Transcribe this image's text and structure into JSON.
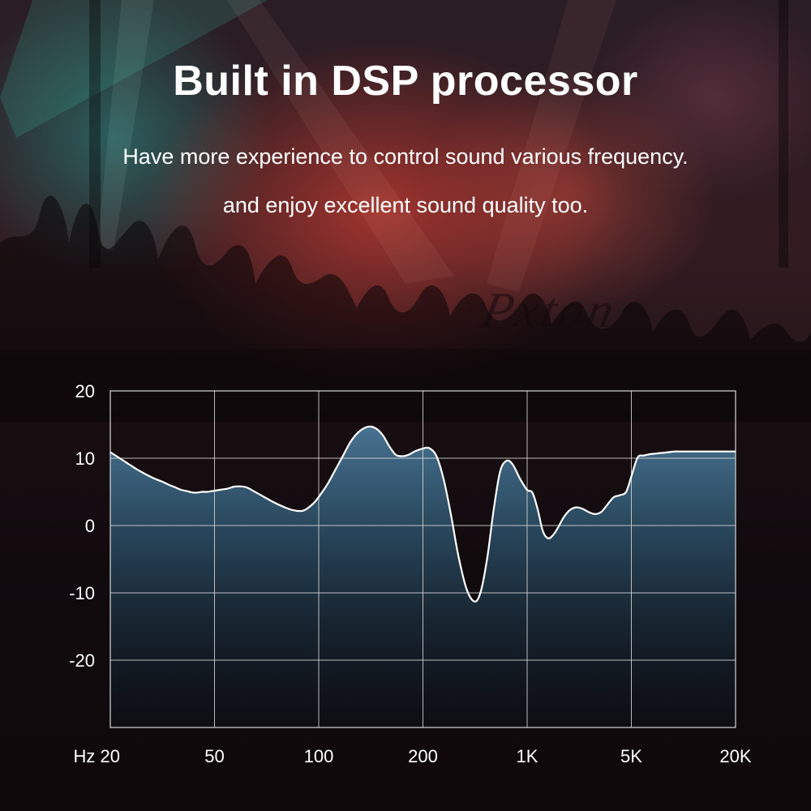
{
  "title": "Built in DSP processor",
  "subtitle_lines": [
    "Have more experience to control sound various frequency.",
    "and enjoy excellent sound quality too."
  ],
  "brand": "Pxton",
  "colors": {
    "fill_top": "#4a7898",
    "fill_bottom": "#0a1620",
    "curve": "#ffffff",
    "grid": "#d8d8d8",
    "text": "#ffffff"
  },
  "chart_data": {
    "type": "area",
    "y_tick_labels": [
      "20",
      "10",
      "0",
      "-10",
      "-20"
    ],
    "y_ticks": [
      20,
      10,
      0,
      -10,
      -20
    ],
    "ylim": [
      -30,
      20
    ],
    "x_tick_labels": [
      "Hz 20",
      "50",
      "100",
      "200",
      "1K",
      "5K",
      "20K"
    ],
    "x": [
      0,
      0.06,
      0.12,
      0.18,
      0.25,
      0.33,
      0.42,
      0.5,
      0.57,
      0.62,
      0.68,
      0.74,
      0.79,
      0.84,
      0.88,
      0.93,
      0.97,
      1.05,
      1.13,
      1.2,
      1.3,
      1.4,
      1.55,
      1.66,
      1.75,
      1.85,
      1.95,
      2.03,
      2.09,
      2.16,
      2.23,
      2.3,
      2.37,
      2.44,
      2.5,
      2.56,
      2.62,
      2.68,
      2.74,
      2.8,
      2.86,
      2.92,
      2.99,
      3.06,
      3.13,
      3.2,
      3.27,
      3.34,
      3.42,
      3.5,
      3.56,
      3.62,
      3.68,
      3.74,
      3.8,
      3.86,
      3.93,
      4.0,
      4.05,
      4.1,
      4.15,
      4.2,
      4.25,
      4.3,
      4.35,
      4.41,
      4.47,
      4.53,
      4.59,
      4.65,
      4.71,
      4.77,
      4.83,
      4.89,
      4.95,
      5.0,
      5.06,
      5.12,
      5.18,
      5.24,
      5.3,
      5.36,
      5.42,
      5.48,
      5.54,
      5.6,
      5.66,
      5.72,
      5.78,
      5.84,
      5.9,
      5.96,
      6.0
    ],
    "values": [
      10.9,
      10.3,
      9.7,
      9.1,
      8.4,
      7.7,
      7.0,
      6.5,
      6.0,
      5.7,
      5.3,
      5.1,
      4.9,
      4.9,
      5.0,
      5.0,
      5.1,
      5.3,
      5.5,
      5.8,
      5.7,
      4.9,
      3.6,
      2.8,
      2.3,
      2.2,
      3.3,
      4.9,
      6.3,
      8.3,
      10.3,
      12.3,
      13.7,
      14.5,
      14.7,
      14.3,
      13.3,
      11.7,
      10.5,
      10.3,
      10.5,
      11.0,
      11.4,
      11.5,
      10.3,
      6.8,
      1.5,
      -4.5,
      -9.5,
      -11.3,
      -9.5,
      -4.5,
      2.5,
      8.0,
      9.6,
      9.1,
      7.0,
      5.3,
      4.9,
      2.5,
      -0.8,
      -1.9,
      -1.4,
      -0.2,
      1.2,
      2.3,
      2.7,
      2.5,
      2.0,
      1.7,
      2.0,
      3.1,
      4.2,
      4.5,
      5.0,
      7.3,
      10.1,
      10.4,
      10.6,
      10.7,
      10.8,
      10.9,
      11.0,
      11.0,
      11.0,
      11.0,
      11.0,
      11.0,
      11.0,
      11.0,
      11.0,
      11.0,
      11.0
    ]
  }
}
